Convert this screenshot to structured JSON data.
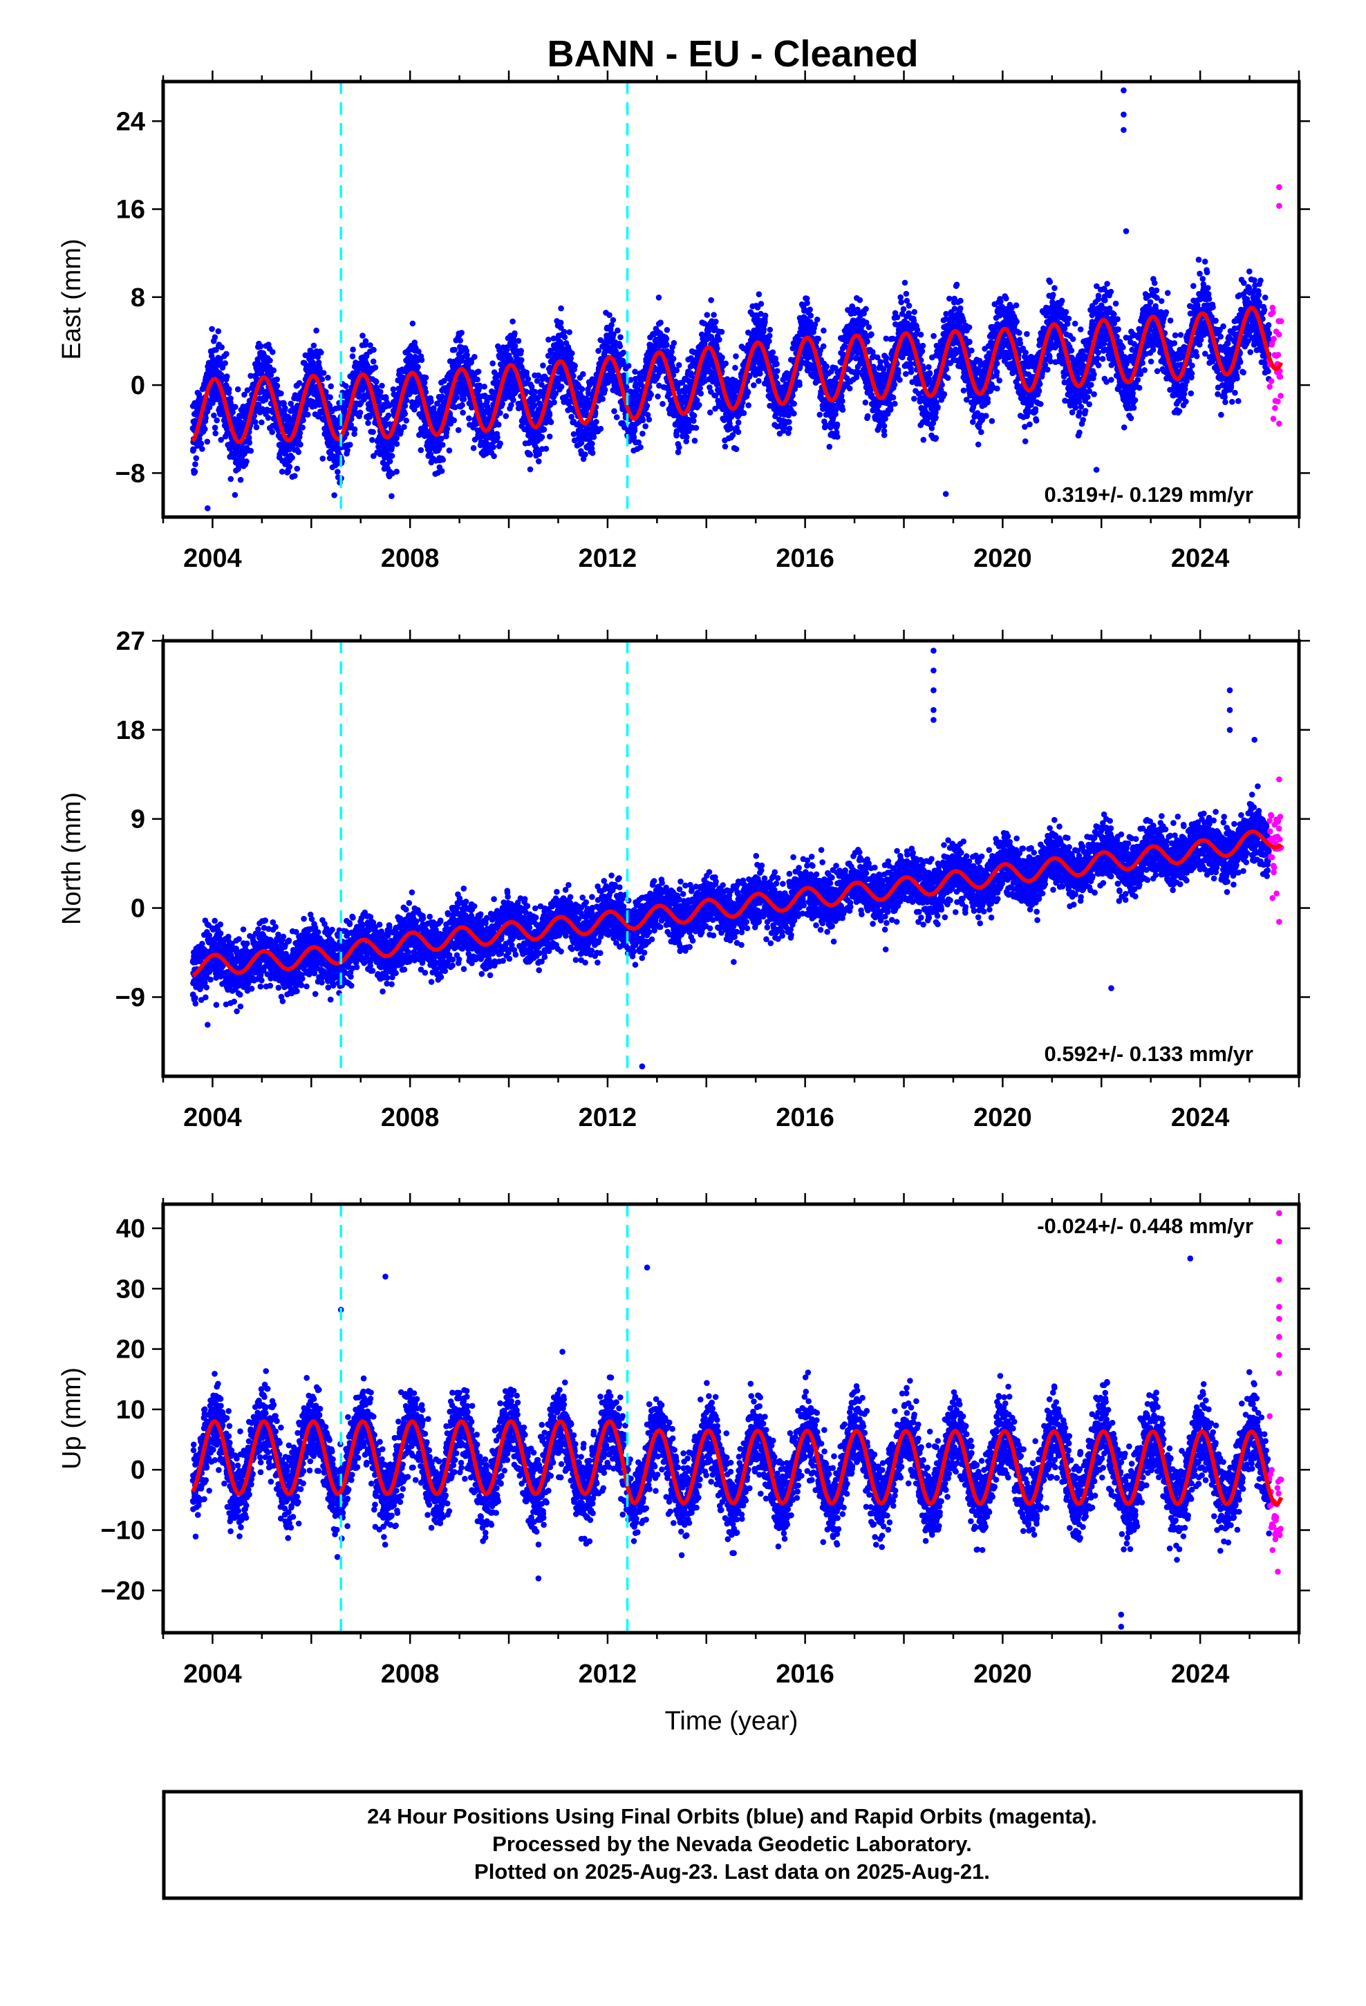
{
  "title": "BANN  - EU - Cleaned",
  "xlabel": "Time (year)",
  "footer": {
    "line1": "24 Hour Positions Using Final Orbits (blue) and Rapid Orbits (magenta).",
    "line2": "Processed by the Nevada Geodetic Laboratory.",
    "line3": "Plotted on 2025-Aug-23. Last data on 2025-Aug-21."
  },
  "colors": {
    "final_orbits": "#0000ff",
    "rapid_orbits": "#ff00ff",
    "model_fit": "#ff0000",
    "equipment_change": "#00ffff"
  },
  "chart_data": [
    {
      "type": "scatter",
      "panel": "east",
      "ylabel": "East (mm)",
      "xlim": [
        2003.0,
        2026.0
      ],
      "ylim": [
        -12,
        27.6
      ],
      "xticks": [
        2004,
        2008,
        2012,
        2016,
        2020,
        2024
      ],
      "yticks": [
        -8,
        0,
        8,
        16,
        24
      ],
      "data_start": 2003.6,
      "data_end": 2025.64,
      "rapid_start": 2025.4,
      "vertical_dashed_lines": [
        2006.6,
        2012.4
      ],
      "rate_text": "0.319+/- 0.129 mm/yr",
      "rate_position": "bottom-right",
      "model": {
        "offset_at_2003_6": -2.4,
        "trend_per_yr": 0.319,
        "seasonal_amplitude": 2.9,
        "noise_sd": 1.7
      },
      "trend_control_points": [
        [
          2003.6,
          -2.4
        ],
        [
          2008,
          -1.8
        ],
        [
          2012,
          -0.4
        ],
        [
          2016,
          1.4
        ],
        [
          2020,
          2.2
        ],
        [
          2022,
          3.0
        ],
        [
          2024,
          3.6
        ],
        [
          2025.6,
          4.4
        ]
      ],
      "outliers": [
        [
          2022.45,
          26.8
        ],
        [
          2022.45,
          24.6
        ],
        [
          2022.45,
          23.2
        ],
        [
          2022.5,
          14.0
        ],
        [
          2018.85,
          -9.9
        ],
        [
          2021.9,
          -7.7
        ],
        [
          2003.9,
          -11.2
        ],
        [
          2025.6,
          18.0
        ],
        [
          2025.6,
          16.3
        ],
        [
          2025.6,
          -3.5
        ]
      ]
    },
    {
      "type": "scatter",
      "panel": "north",
      "ylabel": "North (mm)",
      "xlim": [
        2003.0,
        2026.0
      ],
      "ylim": [
        -17,
        27
      ],
      "xticks": [
        2004,
        2008,
        2012,
        2016,
        2020,
        2024
      ],
      "yticks": [
        -9,
        0,
        9,
        18,
        27
      ],
      "data_start": 2003.6,
      "data_end": 2025.64,
      "rapid_start": 2025.4,
      "vertical_dashed_lines": [
        2006.6,
        2012.4
      ],
      "rate_text": "0.592+/- 0.133 mm/yr",
      "rate_position": "bottom-right",
      "model": {
        "offset_at_2003_6": -5.9,
        "trend_per_yr": 0.592,
        "seasonal_amplitude": 1.0,
        "noise_sd": 1.4
      },
      "trend_control_points": [
        [
          2003.6,
          -5.9
        ],
        [
          2006,
          -5.0
        ],
        [
          2008,
          -3.5
        ],
        [
          2012,
          -1.4
        ],
        [
          2016,
          1.0
        ],
        [
          2018.6,
          2.4
        ],
        [
          2020,
          3.4
        ],
        [
          2024,
          5.8
        ],
        [
          2025.6,
          7.2
        ]
      ],
      "outliers": [
        [
          2018.6,
          26.0
        ],
        [
          2018.6,
          24.0
        ],
        [
          2018.6,
          22.0
        ],
        [
          2018.6,
          20.0
        ],
        [
          2018.6,
          19.0
        ],
        [
          2024.6,
          22.0
        ],
        [
          2024.6,
          20.0
        ],
        [
          2024.6,
          18.0
        ],
        [
          2025.1,
          17.0
        ],
        [
          2022.2,
          -8.1
        ],
        [
          2012.7,
          -16.0
        ],
        [
          2003.9,
          -11.8
        ],
        [
          2025.6,
          13.0
        ],
        [
          2025.6,
          -1.4
        ]
      ]
    },
    {
      "type": "scatter",
      "panel": "up",
      "ylabel": "Up (mm)",
      "xlim": [
        2003.0,
        2026.0
      ],
      "ylim": [
        -27,
        44
      ],
      "xticks": [
        2004,
        2008,
        2012,
        2016,
        2020,
        2024
      ],
      "yticks": [
        -20,
        -10,
        0,
        10,
        20,
        30,
        40
      ],
      "data_start": 2003.6,
      "data_end": 2025.64,
      "rapid_start": 2025.4,
      "vertical_dashed_lines": [
        2006.6,
        2012.4
      ],
      "rate_text": "-0.024+/- 0.448 mm/yr",
      "rate_position": "top-right",
      "model": {
        "offset_at_2003_6": 0.5,
        "trend_per_yr": -0.024,
        "seasonal_amplitude": 6.0,
        "noise_sd": 3.2
      },
      "trend_control_points": [
        [
          2003.6,
          2.0
        ],
        [
          2012.3,
          2.0
        ],
        [
          2012.5,
          0.5
        ],
        [
          2025.6,
          0.3
        ]
      ],
      "outliers": [
        [
          2007.5,
          32.0
        ],
        [
          2012.8,
          33.5
        ],
        [
          2023.8,
          35.0
        ],
        [
          2006.6,
          26.5
        ],
        [
          2022.4,
          -26.0
        ],
        [
          2022.4,
          -24.0
        ],
        [
          2010.6,
          -18.0
        ],
        [
          2025.6,
          42.5
        ],
        [
          2025.6,
          37.8
        ],
        [
          2025.6,
          31.5
        ],
        [
          2025.6,
          27.0
        ],
        [
          2025.6,
          25.0
        ],
        [
          2025.6,
          22.0
        ],
        [
          2025.6,
          19.0
        ],
        [
          2025.6,
          16.0
        ]
      ]
    }
  ]
}
